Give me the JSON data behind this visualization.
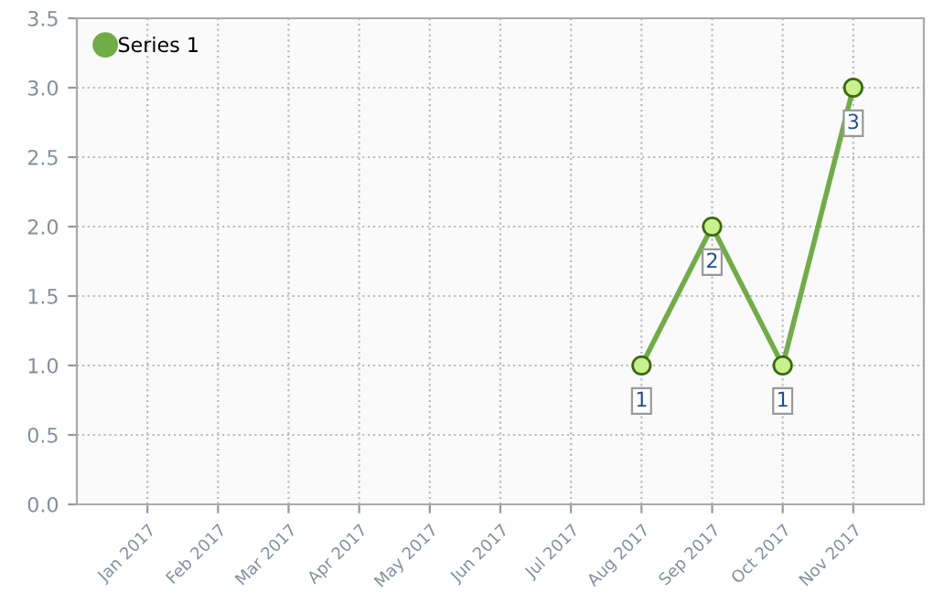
{
  "chart_data": {
    "type": "line",
    "categories": [
      "Jan 2017",
      "Feb 2017",
      "Mar 2017",
      "Apr 2017",
      "May 2017",
      "Jun 2017",
      "Jul 2017",
      "Aug 2017",
      "Sep 2017",
      "Oct 2017",
      "Nov 2017"
    ],
    "series": [
      {
        "name": "Series 1",
        "color": "#70ad47",
        "values": [
          null,
          null,
          null,
          null,
          null,
          null,
          null,
          1,
          2,
          1,
          3
        ],
        "value_labels": [
          null,
          null,
          null,
          null,
          null,
          null,
          null,
          "1",
          "2",
          "1",
          "3"
        ]
      }
    ],
    "ylim": [
      0,
      3.5
    ],
    "yticks": [
      {
        "value": 0,
        "label": "0.0"
      },
      {
        "value": 0.5,
        "label": "0.5"
      },
      {
        "value": 1,
        "label": "1.0"
      },
      {
        "value": 1.5,
        "label": "1.5"
      },
      {
        "value": 2,
        "label": "2.0"
      },
      {
        "value": 2.5,
        "label": "2.5"
      },
      {
        "value": 3,
        "label": "3.0"
      },
      {
        "value": 3.5,
        "label": "3.5"
      }
    ],
    "grid": true,
    "legend": "top left",
    "marker": "circle",
    "line_style": "solid"
  }
}
